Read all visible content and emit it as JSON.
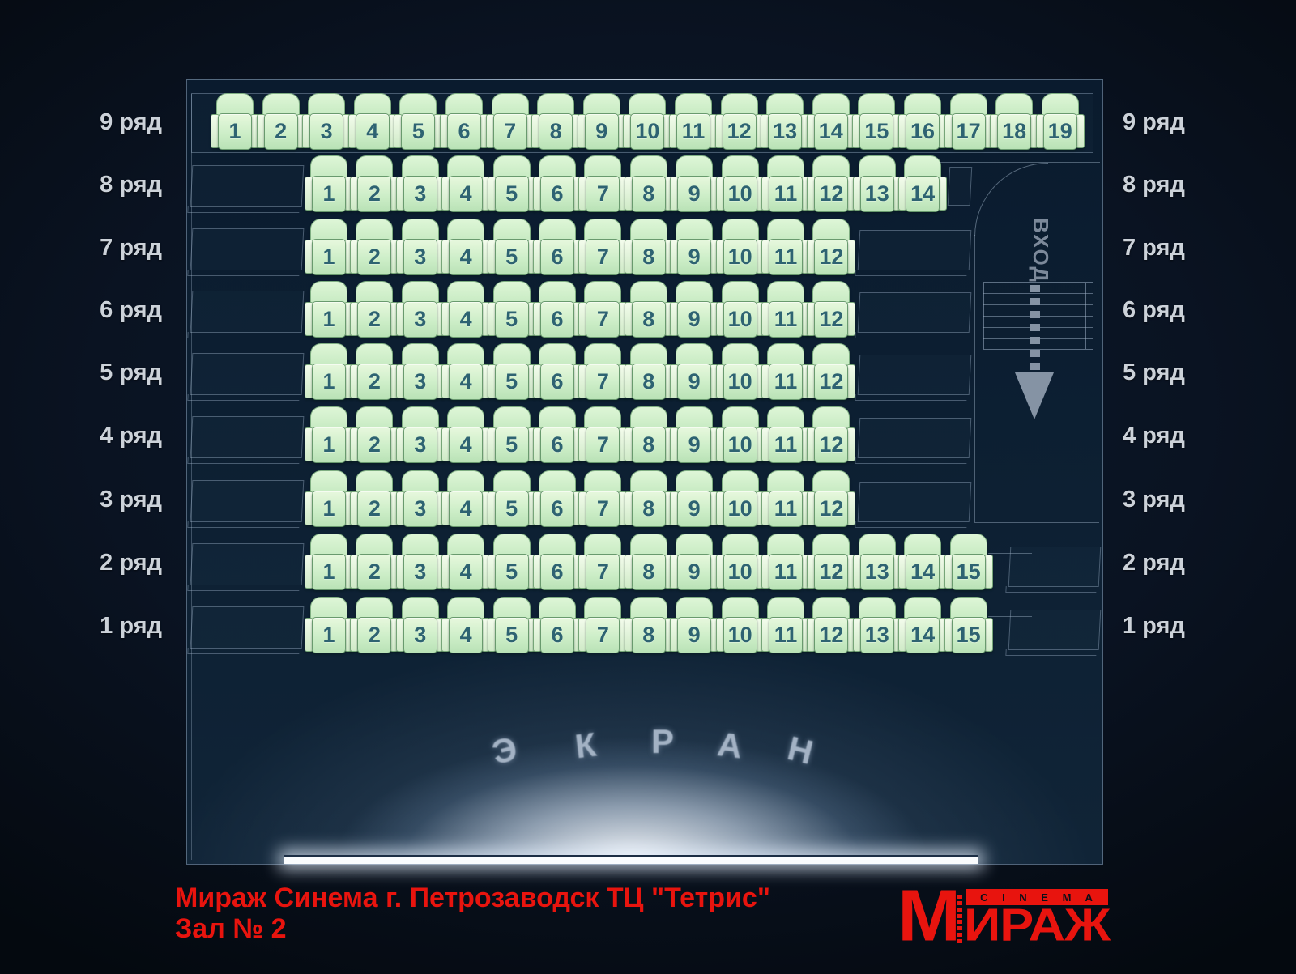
{
  "hall": {
    "entrance_label": "ВХОД",
    "screen_label": "ЭКРАН",
    "screen_letters": [
      "Э",
      "К",
      "Р",
      "А",
      "Н"
    ],
    "rows": [
      {
        "row": 9,
        "label": "9 ряд",
        "seat_count": 19,
        "seats": [
          1,
          2,
          3,
          4,
          5,
          6,
          7,
          8,
          9,
          10,
          11,
          12,
          13,
          14,
          15,
          16,
          17,
          18,
          19
        ]
      },
      {
        "row": 8,
        "label": "8 ряд",
        "seat_count": 14,
        "seats": [
          1,
          2,
          3,
          4,
          5,
          6,
          7,
          8,
          9,
          10,
          11,
          12,
          13,
          14
        ]
      },
      {
        "row": 7,
        "label": "7 ряд",
        "seat_count": 12,
        "seats": [
          1,
          2,
          3,
          4,
          5,
          6,
          7,
          8,
          9,
          10,
          11,
          12
        ]
      },
      {
        "row": 6,
        "label": "6 ряд",
        "seat_count": 12,
        "seats": [
          1,
          2,
          3,
          4,
          5,
          6,
          7,
          8,
          9,
          10,
          11,
          12
        ]
      },
      {
        "row": 5,
        "label": "5 ряд",
        "seat_count": 12,
        "seats": [
          1,
          2,
          3,
          4,
          5,
          6,
          7,
          8,
          9,
          10,
          11,
          12
        ]
      },
      {
        "row": 4,
        "label": "4 ряд",
        "seat_count": 12,
        "seats": [
          1,
          2,
          3,
          4,
          5,
          6,
          7,
          8,
          9,
          10,
          11,
          12
        ]
      },
      {
        "row": 3,
        "label": "3 ряд",
        "seat_count": 12,
        "seats": [
          1,
          2,
          3,
          4,
          5,
          6,
          7,
          8,
          9,
          10,
          11,
          12
        ]
      },
      {
        "row": 2,
        "label": "2 ряд",
        "seat_count": 15,
        "seats": [
          1,
          2,
          3,
          4,
          5,
          6,
          7,
          8,
          9,
          10,
          11,
          12,
          13,
          14,
          15
        ]
      },
      {
        "row": 1,
        "label": "1 ряд",
        "seat_count": 15,
        "seats": [
          1,
          2,
          3,
          4,
          5,
          6,
          7,
          8,
          9,
          10,
          11,
          12,
          13,
          14,
          15
        ]
      }
    ]
  },
  "footer": {
    "line1": "Мираж Синема г. Петрозаводск ТЦ \"Тетрис\"",
    "line2": "Зал № 2"
  },
  "logo": {
    "m": "М",
    "cinema": "C I N E M A",
    "name": "ИРАЖ"
  },
  "colors": {
    "accent_red": "#e8140e",
    "seat_fill": "#cdeec8",
    "seat_number": "#2e6372",
    "hall_background": "#0d2033",
    "outline_line": "#9eb1c6",
    "row_label_text": "#ccd2d9",
    "entrance_gray": "#8593a4",
    "screen_bar": "#fafcfe"
  }
}
